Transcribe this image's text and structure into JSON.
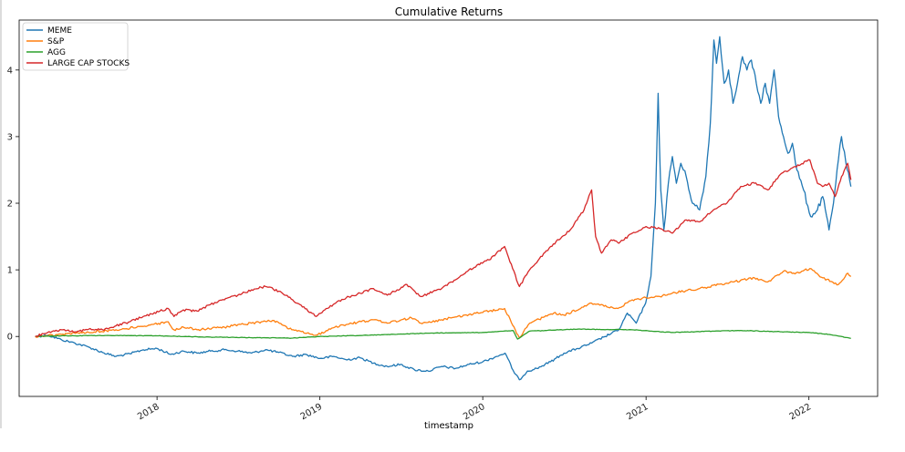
{
  "chart_data": {
    "type": "line",
    "title": "Cumulative Returns",
    "xlabel": "timestamp",
    "ylabel": "",
    "xlim": [
      "2017-02-26",
      "2022-06-04"
    ],
    "ylim": [
      -0.9,
      4.75
    ],
    "yticks": [
      0,
      1,
      2,
      3,
      4
    ],
    "xticks": [
      "2018",
      "2019",
      "2020",
      "2021",
      "2022"
    ],
    "xtick_dates": [
      "2018-01-01",
      "2019-01-01",
      "2020-01-01",
      "2021-01-01",
      "2022-01-01"
    ],
    "grid": false,
    "legend_position": "top-left",
    "series": [
      {
        "name": "MEME",
        "color": "#1f77b4",
        "points": [
          [
            "2017-04-03",
            0.0
          ],
          [
            "2017-05-01",
            0.02
          ],
          [
            "2017-06-01",
            -0.05
          ],
          [
            "2017-07-01",
            -0.1
          ],
          [
            "2017-08-01",
            -0.16
          ],
          [
            "2017-09-01",
            -0.24
          ],
          [
            "2017-10-01",
            -0.3
          ],
          [
            "2017-11-01",
            -0.26
          ],
          [
            "2017-12-01",
            -0.2
          ],
          [
            "2018-01-01",
            -0.18
          ],
          [
            "2018-02-01",
            -0.27
          ],
          [
            "2018-03-01",
            -0.22
          ],
          [
            "2018-04-01",
            -0.25
          ],
          [
            "2018-05-01",
            -0.22
          ],
          [
            "2018-06-01",
            -0.2
          ],
          [
            "2018-07-01",
            -0.22
          ],
          [
            "2018-08-01",
            -0.25
          ],
          [
            "2018-09-01",
            -0.2
          ],
          [
            "2018-10-01",
            -0.24
          ],
          [
            "2018-11-01",
            -0.3
          ],
          [
            "2018-12-01",
            -0.27
          ],
          [
            "2019-01-01",
            -0.33
          ],
          [
            "2019-02-01",
            -0.3
          ],
          [
            "2019-03-01",
            -0.35
          ],
          [
            "2019-04-01",
            -0.32
          ],
          [
            "2019-05-01",
            -0.4
          ],
          [
            "2019-06-01",
            -0.45
          ],
          [
            "2019-07-01",
            -0.42
          ],
          [
            "2019-08-01",
            -0.5
          ],
          [
            "2019-09-01",
            -0.52
          ],
          [
            "2019-10-01",
            -0.45
          ],
          [
            "2019-11-01",
            -0.48
          ],
          [
            "2019-12-01",
            -0.42
          ],
          [
            "2020-01-01",
            -0.38
          ],
          [
            "2020-02-01",
            -0.3
          ],
          [
            "2020-02-20",
            -0.25
          ],
          [
            "2020-03-12",
            -0.55
          ],
          [
            "2020-03-23",
            -0.65
          ],
          [
            "2020-04-10",
            -0.52
          ],
          [
            "2020-05-01",
            -0.48
          ],
          [
            "2020-06-01",
            -0.38
          ],
          [
            "2020-07-01",
            -0.25
          ],
          [
            "2020-08-01",
            -0.18
          ],
          [
            "2020-09-01",
            -0.1
          ],
          [
            "2020-10-01",
            0.0
          ],
          [
            "2020-11-01",
            0.1
          ],
          [
            "2020-11-20",
            0.35
          ],
          [
            "2020-12-10",
            0.2
          ],
          [
            "2020-12-31",
            0.5
          ],
          [
            "2021-01-12",
            0.9
          ],
          [
            "2021-01-22",
            2.0
          ],
          [
            "2021-01-28",
            3.65
          ],
          [
            "2021-02-03",
            2.2
          ],
          [
            "2021-02-10",
            1.6
          ],
          [
            "2021-02-20",
            2.3
          ],
          [
            "2021-03-01",
            2.7
          ],
          [
            "2021-03-10",
            2.3
          ],
          [
            "2021-03-20",
            2.6
          ],
          [
            "2021-04-01",
            2.4
          ],
          [
            "2021-04-15",
            2.0
          ],
          [
            "2021-05-01",
            1.9
          ],
          [
            "2021-05-15",
            2.4
          ],
          [
            "2021-05-25",
            3.2
          ],
          [
            "2021-06-02",
            4.45
          ],
          [
            "2021-06-08",
            4.1
          ],
          [
            "2021-06-15",
            4.5
          ],
          [
            "2021-06-25",
            3.8
          ],
          [
            "2021-07-05",
            4.0
          ],
          [
            "2021-07-15",
            3.5
          ],
          [
            "2021-07-25",
            3.8
          ],
          [
            "2021-08-05",
            4.2
          ],
          [
            "2021-08-15",
            4.0
          ],
          [
            "2021-08-25",
            4.15
          ],
          [
            "2021-09-05",
            3.8
          ],
          [
            "2021-09-15",
            3.5
          ],
          [
            "2021-09-25",
            3.8
          ],
          [
            "2021-10-05",
            3.5
          ],
          [
            "2021-10-15",
            4.0
          ],
          [
            "2021-10-25",
            3.3
          ],
          [
            "2021-11-05",
            3.0
          ],
          [
            "2021-11-15",
            2.75
          ],
          [
            "2021-11-25",
            2.9
          ],
          [
            "2021-12-05",
            2.5
          ],
          [
            "2021-12-20",
            2.2
          ],
          [
            "2022-01-05",
            1.8
          ],
          [
            "2022-01-20",
            1.9
          ],
          [
            "2022-02-01",
            2.1
          ],
          [
            "2022-02-15",
            1.6
          ],
          [
            "2022-02-25",
            2.0
          ],
          [
            "2022-03-05",
            2.5
          ],
          [
            "2022-03-15",
            3.0
          ],
          [
            "2022-03-25",
            2.6
          ],
          [
            "2022-04-05",
            2.25
          ]
        ]
      },
      {
        "name": "S&P",
        "color": "#ff7f0e",
        "points": [
          [
            "2017-04-03",
            0.0
          ],
          [
            "2017-06-01",
            0.03
          ],
          [
            "2017-08-01",
            0.06
          ],
          [
            "2017-10-01",
            0.1
          ],
          [
            "2017-12-01",
            0.15
          ],
          [
            "2018-01-26",
            0.22
          ],
          [
            "2018-02-08",
            0.1
          ],
          [
            "2018-03-01",
            0.14
          ],
          [
            "2018-04-01",
            0.1
          ],
          [
            "2018-06-01",
            0.14
          ],
          [
            "2018-08-01",
            0.2
          ],
          [
            "2018-09-20",
            0.24
          ],
          [
            "2018-10-30",
            0.1
          ],
          [
            "2018-12-24",
            0.02
          ],
          [
            "2019-01-31",
            0.13
          ],
          [
            "2019-03-01",
            0.18
          ],
          [
            "2019-05-01",
            0.25
          ],
          [
            "2019-06-01",
            0.2
          ],
          [
            "2019-07-25",
            0.28
          ],
          [
            "2019-08-15",
            0.2
          ],
          [
            "2019-10-01",
            0.25
          ],
          [
            "2019-12-01",
            0.33
          ],
          [
            "2020-02-19",
            0.42
          ],
          [
            "2020-03-23",
            -0.02
          ],
          [
            "2020-04-15",
            0.2
          ],
          [
            "2020-06-08",
            0.35
          ],
          [
            "2020-07-01",
            0.32
          ],
          [
            "2020-09-01",
            0.5
          ],
          [
            "2020-10-30",
            0.42
          ],
          [
            "2020-12-01",
            0.55
          ],
          [
            "2021-01-01",
            0.58
          ],
          [
            "2021-02-01",
            0.6
          ],
          [
            "2021-03-01",
            0.65
          ],
          [
            "2021-05-01",
            0.72
          ],
          [
            "2021-07-01",
            0.8
          ],
          [
            "2021-09-01",
            0.88
          ],
          [
            "2021-10-01",
            0.82
          ],
          [
            "2021-11-05",
            0.98
          ],
          [
            "2021-12-01",
            0.94
          ],
          [
            "2022-01-03",
            1.02
          ],
          [
            "2022-02-01",
            0.88
          ],
          [
            "2022-03-08",
            0.78
          ],
          [
            "2022-03-29",
            0.95
          ],
          [
            "2022-04-05",
            0.9
          ]
        ]
      },
      {
        "name": "AGG",
        "color": "#2ca02c",
        "points": [
          [
            "2017-04-03",
            0.0
          ],
          [
            "2017-06-01",
            0.01
          ],
          [
            "2017-10-01",
            0.015
          ],
          [
            "2018-01-01",
            0.01
          ],
          [
            "2018-05-01",
            -0.01
          ],
          [
            "2018-09-01",
            -0.02
          ],
          [
            "2018-11-01",
            -0.025
          ],
          [
            "2019-01-01",
            0.0
          ],
          [
            "2019-05-01",
            0.02
          ],
          [
            "2019-09-01",
            0.05
          ],
          [
            "2020-01-01",
            0.06
          ],
          [
            "2020-03-09",
            0.09
          ],
          [
            "2020-03-19",
            -0.04
          ],
          [
            "2020-04-15",
            0.08
          ],
          [
            "2020-08-01",
            0.11
          ],
          [
            "2020-12-01",
            0.1
          ],
          [
            "2021-03-01",
            0.06
          ],
          [
            "2021-06-01",
            0.08
          ],
          [
            "2021-08-01",
            0.09
          ],
          [
            "2021-11-01",
            0.07
          ],
          [
            "2022-01-01",
            0.06
          ],
          [
            "2022-02-15",
            0.03
          ],
          [
            "2022-03-15",
            0.0
          ],
          [
            "2022-04-05",
            -0.03
          ]
        ]
      },
      {
        "name": "LARGE CAP STOCKS",
        "color": "#d62728",
        "points": [
          [
            "2017-04-03",
            0.0
          ],
          [
            "2017-05-01",
            0.06
          ],
          [
            "2017-06-01",
            0.1
          ],
          [
            "2017-07-01",
            0.07
          ],
          [
            "2017-08-01",
            0.11
          ],
          [
            "2017-09-01",
            0.1
          ],
          [
            "2017-10-01",
            0.16
          ],
          [
            "2017-11-01",
            0.22
          ],
          [
            "2017-12-01",
            0.3
          ],
          [
            "2018-01-26",
            0.42
          ],
          [
            "2018-02-08",
            0.3
          ],
          [
            "2018-03-01",
            0.4
          ],
          [
            "2018-04-01",
            0.38
          ],
          [
            "2018-05-01",
            0.48
          ],
          [
            "2018-06-01",
            0.55
          ],
          [
            "2018-07-01",
            0.62
          ],
          [
            "2018-08-01",
            0.7
          ],
          [
            "2018-09-01",
            0.75
          ],
          [
            "2018-10-01",
            0.68
          ],
          [
            "2018-11-01",
            0.55
          ],
          [
            "2018-12-24",
            0.3
          ],
          [
            "2019-01-31",
            0.48
          ],
          [
            "2019-03-01",
            0.58
          ],
          [
            "2019-04-01",
            0.65
          ],
          [
            "2019-05-01",
            0.72
          ],
          [
            "2019-06-01",
            0.62
          ],
          [
            "2019-07-15",
            0.78
          ],
          [
            "2019-08-15",
            0.6
          ],
          [
            "2019-10-01",
            0.72
          ],
          [
            "2019-11-01",
            0.85
          ],
          [
            "2019-12-01",
            1.0
          ],
          [
            "2020-01-15",
            1.15
          ],
          [
            "2020-02-19",
            1.35
          ],
          [
            "2020-03-23",
            0.75
          ],
          [
            "2020-04-15",
            1.0
          ],
          [
            "2020-06-01",
            1.35
          ],
          [
            "2020-07-15",
            1.6
          ],
          [
            "2020-08-15",
            1.9
          ],
          [
            "2020-09-01",
            2.2
          ],
          [
            "2020-09-10",
            1.5
          ],
          [
            "2020-09-23",
            1.25
          ],
          [
            "2020-10-15",
            1.45
          ],
          [
            "2020-11-01",
            1.4
          ],
          [
            "2020-12-01",
            1.55
          ],
          [
            "2021-01-01",
            1.65
          ],
          [
            "2021-02-01",
            1.62
          ],
          [
            "2021-03-01",
            1.55
          ],
          [
            "2021-04-01",
            1.75
          ],
          [
            "2021-05-01",
            1.72
          ],
          [
            "2021-06-01",
            1.9
          ],
          [
            "2021-07-01",
            2.0
          ],
          [
            "2021-08-01",
            2.25
          ],
          [
            "2021-09-01",
            2.3
          ],
          [
            "2021-10-01",
            2.2
          ],
          [
            "2021-11-01",
            2.45
          ],
          [
            "2021-12-01",
            2.55
          ],
          [
            "2022-01-03",
            2.65
          ],
          [
            "2022-01-20",
            2.3
          ],
          [
            "2022-02-01",
            2.25
          ],
          [
            "2022-02-15",
            2.3
          ],
          [
            "2022-03-01",
            2.1
          ],
          [
            "2022-03-15",
            2.4
          ],
          [
            "2022-03-29",
            2.6
          ],
          [
            "2022-04-05",
            2.35
          ]
        ]
      }
    ]
  }
}
